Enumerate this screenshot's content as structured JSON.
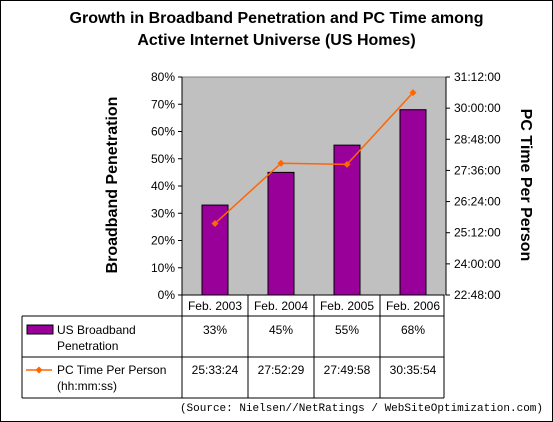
{
  "chart_data": {
    "type": "bar",
    "title_line1": "Growth in Broadband Penetration and PC Time among",
    "title_line2": "Active Internet Universe (US Homes)",
    "ylabel": "Broadband Penetration",
    "y2label": "PC Time Per Person",
    "categories": [
      "Feb. 2003",
      "Feb. 2004",
      "Feb. 2005",
      "Feb. 2006"
    ],
    "ylim": [
      0,
      80
    ],
    "yticks": [
      "0%",
      "10%",
      "20%",
      "30%",
      "40%",
      "50%",
      "60%",
      "70%",
      "80%"
    ],
    "y2lim_seconds": [
      82080,
      112320
    ],
    "y2ticks": [
      "22:48:00",
      "24:00:00",
      "25:12:00",
      "26:24:00",
      "27:36:00",
      "28:48:00",
      "30:00:00",
      "31:12:00"
    ],
    "series": [
      {
        "name": "US Broadband Penetration",
        "type": "bar",
        "axis": "left",
        "values": [
          33,
          45,
          55,
          68
        ],
        "labels": [
          "33%",
          "45%",
          "55%",
          "68%"
        ],
        "color": "#990099"
      },
      {
        "name": "PC Time Per Person (hh:mm:ss)",
        "type": "line",
        "axis": "right",
        "values_seconds": [
          92004,
          100349,
          100198,
          110154
        ],
        "labels": [
          "25:33:24",
          "27:52:29",
          "27:49:58",
          "30:35:54"
        ],
        "color": "#ff6600"
      }
    ],
    "legend_placement": "data-table",
    "grid": false,
    "plot_background": "#c0c0c0",
    "source": "(Source: Nielsen//NetRatings / WebSiteOptimization.com)"
  }
}
